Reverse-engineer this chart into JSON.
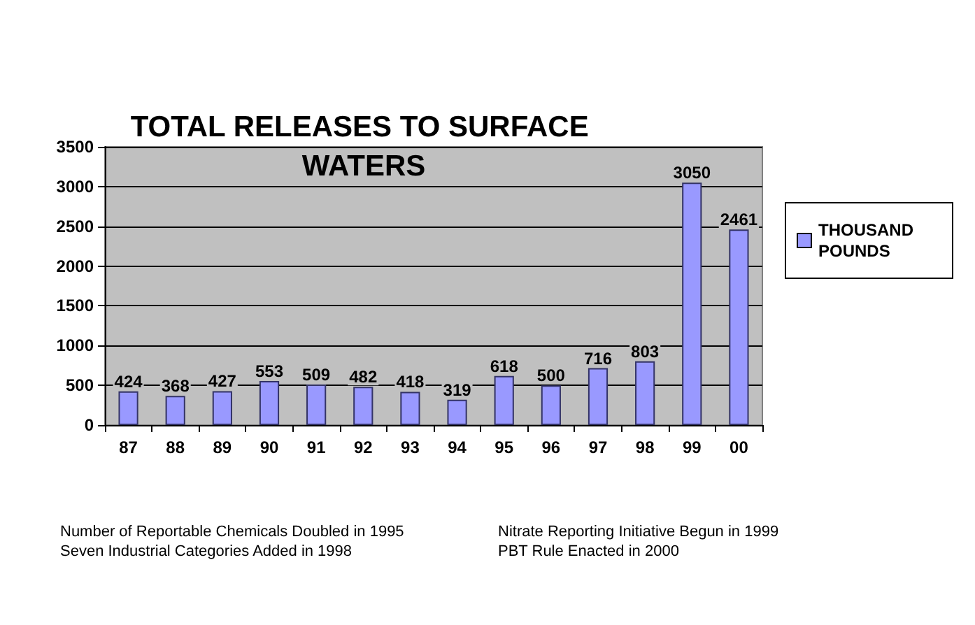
{
  "chart_data": {
    "type": "bar",
    "title": "TOTAL RELEASES TO SURFACE WATERS",
    "categories": [
      "87",
      "88",
      "89",
      "90",
      "91",
      "92",
      "93",
      "94",
      "95",
      "96",
      "97",
      "98",
      "99",
      "00"
    ],
    "series": [
      {
        "name": "THOUSAND POUNDS",
        "color": "#9999ff",
        "values": [
          424,
          368,
          427,
          553,
          509,
          482,
          418,
          319,
          618,
          500,
          716,
          803,
          3050,
          2461
        ]
      }
    ],
    "ylim": [
      0,
      3500
    ],
    "yticks": [
      0,
      500,
      1000,
      1500,
      2000,
      2500,
      3000,
      3500
    ],
    "grid": "y",
    "legend": "right",
    "data_labels": true,
    "annotations": [
      "Number of Reportable Chemicals Doubled in 1995",
      "Seven Industrial Categories Added in 1998",
      "Nitrate Reporting Initiative Begun in 1999",
      "PBT Rule Enacted in 2000"
    ]
  }
}
